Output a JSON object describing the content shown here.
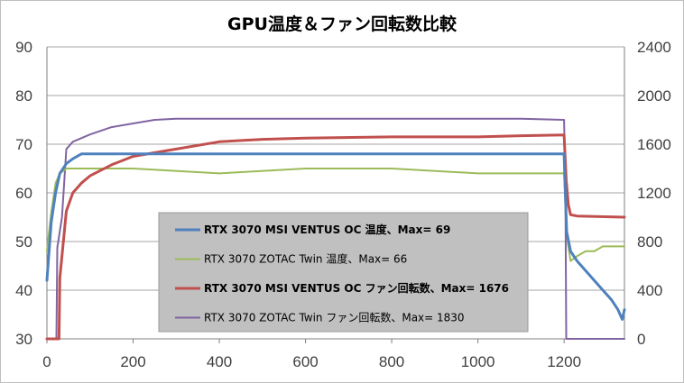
{
  "chart_data": {
    "type": "line",
    "title": "GPU温度＆ファン回転数比較",
    "x": {
      "ticks": [
        0,
        200,
        400,
        600,
        800,
        1000,
        1200
      ],
      "range": [
        0,
        1340
      ]
    },
    "y_left": {
      "ticks": [
        30,
        40,
        50,
        60,
        70,
        80,
        90
      ],
      "range": [
        30,
        90
      ]
    },
    "y_right": {
      "ticks": [
        0,
        400,
        800,
        1200,
        1600,
        2000,
        2400
      ],
      "range": [
        0,
        2400
      ]
    },
    "grid": "horizontal",
    "legend_position": "center-left",
    "series": [
      {
        "name": "RTX 3070 MSI VENTUS OC 温度、Max= 69",
        "axis": "left",
        "color": "#4f81bd",
        "bold": true,
        "x": [
          0,
          10,
          20,
          30,
          45,
          60,
          80,
          100,
          150,
          200,
          400,
          600,
          800,
          1000,
          1150,
          1200,
          1202,
          1206,
          1215,
          1230,
          1250,
          1270,
          1290,
          1310,
          1325,
          1335,
          1340
        ],
        "y": [
          42,
          54,
          60,
          64,
          66,
          67,
          68,
          68,
          68,
          68,
          68,
          68,
          68,
          68,
          68,
          68,
          62,
          52,
          48,
          46,
          44,
          42,
          40,
          38,
          36,
          34,
          36
        ]
      },
      {
        "name": "RTX 3070 ZOTAC Twin 温度、Max= 66",
        "axis": "left",
        "color": "#9bbb59",
        "bold": false,
        "x": [
          0,
          10,
          20,
          30,
          45,
          60,
          80,
          150,
          200,
          400,
          600,
          800,
          1000,
          1150,
          1200,
          1203,
          1208,
          1215,
          1230,
          1250,
          1270,
          1290,
          1340
        ],
        "y": [
          48,
          56,
          62,
          64,
          65,
          65,
          65,
          65,
          65,
          64,
          65,
          65,
          64,
          64,
          64,
          58,
          50,
          46,
          47,
          48,
          48,
          49,
          49
        ]
      },
      {
        "name": "RTX 3070 MSI VENTUS OC ファン回転数、Max= 1676",
        "axis": "right",
        "color": "#c0504d",
        "bold": true,
        "x": [
          0,
          28,
          30,
          45,
          60,
          80,
          100,
          150,
          200,
          300,
          400,
          500,
          600,
          800,
          1000,
          1100,
          1200,
          1205,
          1210,
          1215,
          1230,
          1340
        ],
        "y": [
          0,
          0,
          500,
          1050,
          1200,
          1280,
          1340,
          1430,
          1500,
          1560,
          1620,
          1640,
          1650,
          1660,
          1660,
          1670,
          1676,
          1300,
          1100,
          1020,
          1010,
          1000
        ]
      },
      {
        "name": "RTX 3070 ZOTAC Twin ファン回転数、Max= 1830",
        "axis": "right",
        "color": "#8064a2",
        "bold": false,
        "x": [
          0,
          22,
          24,
          35,
          45,
          60,
          100,
          150,
          200,
          250,
          300,
          400,
          500,
          600,
          800,
          1000,
          1100,
          1200,
          1203,
          1205,
          1340
        ],
        "y": [
          0,
          0,
          750,
          1000,
          1560,
          1620,
          1680,
          1740,
          1770,
          1800,
          1810,
          1810,
          1810,
          1810,
          1810,
          1810,
          1810,
          1800,
          1200,
          0,
          0
        ]
      }
    ]
  }
}
